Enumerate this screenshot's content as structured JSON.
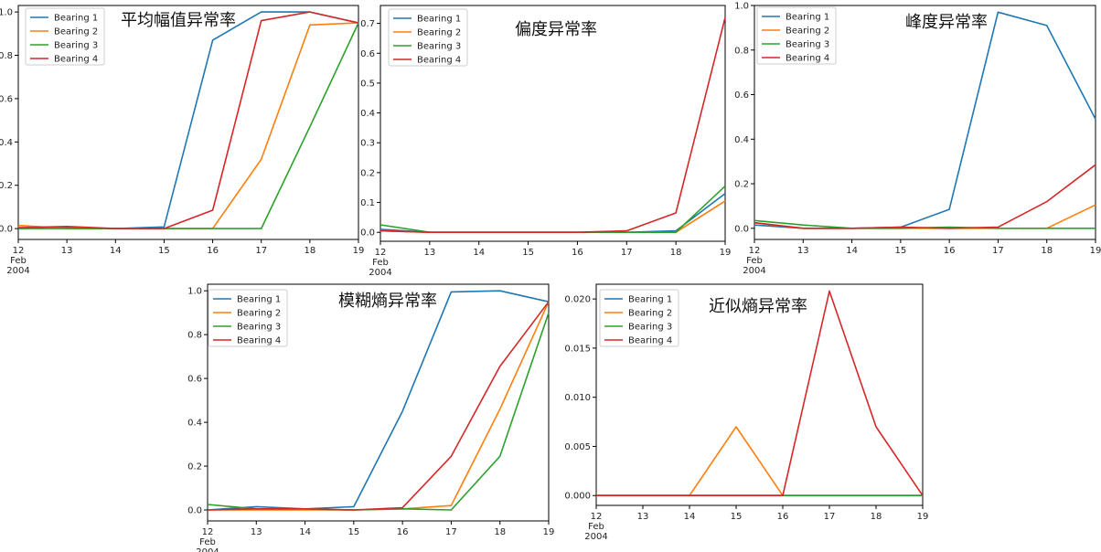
{
  "colors": {
    "Bearing 1": "#1f77b4",
    "Bearing 2": "#ff7f0e",
    "Bearing 3": "#2ca02c",
    "Bearing 4": "#d62728"
  },
  "x_tick_labels": [
    "12",
    "13",
    "14",
    "15",
    "16",
    "17",
    "18",
    "19"
  ],
  "x_first_extra": [
    "Feb",
    "2004"
  ],
  "chart_data": [
    {
      "type": "line",
      "title": "平均幅值异常率",
      "legend_placement": "top-left",
      "x": [
        12,
        13,
        14,
        15,
        16,
        17,
        18,
        19
      ],
      "xlim": [
        12,
        19
      ],
      "ylim": [
        -0.05,
        1.03
      ],
      "yticks": [
        "0.0",
        "0.2",
        "0.4",
        "0.6",
        "0.8",
        "1.0"
      ],
      "series": [
        {
          "name": "Bearing 1",
          "values": [
            0.0,
            0.005,
            0.0,
            0.008,
            0.87,
            1.0,
            1.0,
            0.95
          ]
        },
        {
          "name": "Bearing 2",
          "values": [
            0.015,
            0.0,
            0.0,
            0.0,
            0.0,
            0.32,
            0.94,
            0.95
          ]
        },
        {
          "name": "Bearing 3",
          "values": [
            0.0,
            0.0,
            0.0,
            0.0,
            0.0,
            0.0,
            0.47,
            0.95
          ]
        },
        {
          "name": "Bearing 4",
          "values": [
            0.005,
            0.01,
            0.0,
            0.0,
            0.085,
            0.96,
            1.0,
            0.95
          ]
        }
      ]
    },
    {
      "type": "line",
      "title": "偏度异常率",
      "legend_placement": "top-left",
      "x": [
        12,
        13,
        14,
        15,
        16,
        17,
        18,
        19
      ],
      "xlim": [
        12,
        19
      ],
      "ylim": [
        -0.03,
        0.76
      ],
      "yticks": [
        "0.0",
        "0.1",
        "0.2",
        "0.3",
        "0.4",
        "0.5",
        "0.6",
        "0.7"
      ],
      "series": [
        {
          "name": "Bearing 1",
          "values": [
            0.01,
            0.0,
            0.0,
            0.0,
            0.0,
            0.0,
            0.005,
            0.13
          ]
        },
        {
          "name": "Bearing 2",
          "values": [
            0.005,
            0.0,
            0.0,
            0.0,
            0.0,
            0.0,
            0.0,
            0.105
          ]
        },
        {
          "name": "Bearing 3",
          "values": [
            0.025,
            0.0,
            0.0,
            0.0,
            0.0,
            0.0,
            0.0,
            0.155
          ]
        },
        {
          "name": "Bearing 4",
          "values": [
            0.005,
            0.0,
            0.0,
            0.0,
            0.0,
            0.005,
            0.065,
            0.72
          ]
        }
      ]
    },
    {
      "type": "line",
      "title": "峰度异常率",
      "legend_placement": "top-left",
      "x": [
        12,
        13,
        14,
        15,
        16,
        17,
        18,
        19
      ],
      "xlim": [
        12,
        19
      ],
      "ylim": [
        -0.05,
        1.0
      ],
      "yticks": [
        "0.0",
        "0.2",
        "0.4",
        "0.6",
        "0.8",
        "1.0"
      ],
      "series": [
        {
          "name": "Bearing 1",
          "values": [
            0.015,
            0.0,
            0.0,
            0.005,
            0.085,
            0.97,
            0.91,
            0.49
          ]
        },
        {
          "name": "Bearing 2",
          "values": [
            0.025,
            0.0,
            0.0,
            0.0,
            0.0,
            0.0,
            0.0,
            0.105
          ]
        },
        {
          "name": "Bearing 3",
          "values": [
            0.035,
            0.015,
            0.0,
            0.0,
            0.005,
            0.0,
            0.0,
            0.0
          ]
        },
        {
          "name": "Bearing 4",
          "values": [
            0.025,
            0.0,
            0.0,
            0.005,
            0.0,
            0.005,
            0.12,
            0.285
          ]
        }
      ]
    },
    {
      "type": "line",
      "title": "模糊熵异常率",
      "legend_placement": "top-left",
      "x": [
        12,
        13,
        14,
        15,
        16,
        17,
        18,
        19
      ],
      "xlim": [
        12,
        19
      ],
      "ylim": [
        -0.05,
        1.03
      ],
      "yticks": [
        "0.0",
        "0.2",
        "0.4",
        "0.6",
        "0.8",
        "1.0"
      ],
      "series": [
        {
          "name": "Bearing 1",
          "values": [
            0.0,
            0.015,
            0.005,
            0.015,
            0.45,
            0.995,
            1.0,
            0.95
          ]
        },
        {
          "name": "Bearing 2",
          "values": [
            0.0,
            0.0,
            0.0,
            0.0,
            0.005,
            0.02,
            0.46,
            0.95
          ]
        },
        {
          "name": "Bearing 3",
          "values": [
            0.025,
            0.005,
            0.005,
            0.0,
            0.005,
            0.0,
            0.245,
            0.9
          ]
        },
        {
          "name": "Bearing 4",
          "values": [
            0.0,
            0.005,
            0.005,
            0.0,
            0.01,
            0.245,
            0.655,
            0.95
          ]
        }
      ]
    },
    {
      "type": "line",
      "title": "近似熵异常率",
      "legend_placement": "top-left",
      "x": [
        12,
        13,
        14,
        15,
        16,
        17,
        18,
        19
      ],
      "xlim": [
        12,
        19
      ],
      "ylim": [
        -0.001,
        0.0215
      ],
      "yticks": [
        "0.000",
        "0.005",
        "0.010",
        "0.015",
        "0.020"
      ],
      "series": [
        {
          "name": "Bearing 1",
          "values": [
            0.0,
            0.0,
            0.0,
            0.0,
            0.0,
            0.0,
            0.0,
            0.0
          ]
        },
        {
          "name": "Bearing 2",
          "values": [
            0.0,
            0.0,
            0.0,
            0.007,
            0.0,
            0.0,
            0.0,
            0.0
          ]
        },
        {
          "name": "Bearing 3",
          "values": [
            0.0,
            0.0,
            0.0,
            0.0,
            0.0,
            0.0,
            0.0,
            0.0
          ]
        },
        {
          "name": "Bearing 4",
          "values": [
            0.0,
            0.0,
            0.0,
            0.0,
            0.0,
            0.0208,
            0.007,
            0.0
          ]
        }
      ]
    }
  ]
}
